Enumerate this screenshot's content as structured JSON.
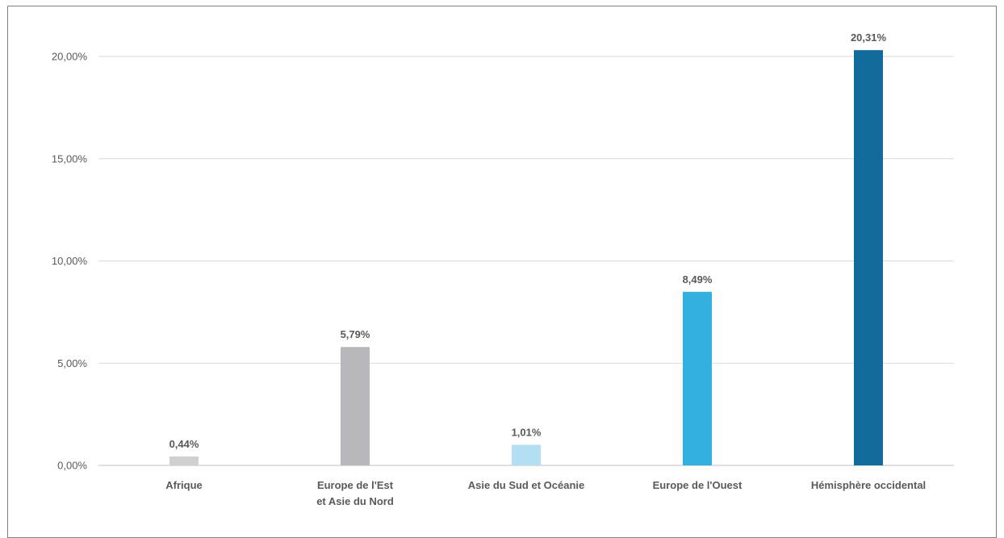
{
  "chart_data": {
    "type": "bar",
    "categories": [
      [
        "Afrique"
      ],
      [
        "Europe de l'Est",
        "et Asie du Nord"
      ],
      [
        "Asie du Sud et Océanie"
      ],
      [
        "Europe de l'Ouest"
      ],
      [
        "Hémisphère occidental"
      ]
    ],
    "values": [
      0.44,
      5.79,
      1.01,
      8.49,
      20.31
    ],
    "value_labels": [
      "0,44%",
      "5,79%",
      "1,01%",
      "8,49%",
      "20,31%"
    ],
    "bar_colors": [
      "#d0d0d0",
      "#b8b8bc",
      "#b4dff3",
      "#33b0e0",
      "#136b9c"
    ],
    "ylim": [
      0,
      20
    ],
    "yticks": [
      0,
      5,
      10,
      15,
      20
    ],
    "ytick_labels": [
      "0,00%",
      "5,00%",
      "10,00%",
      "15,00%",
      "20,00%"
    ],
    "grid": true,
    "title": "",
    "xlabel": "",
    "ylabel": ""
  }
}
